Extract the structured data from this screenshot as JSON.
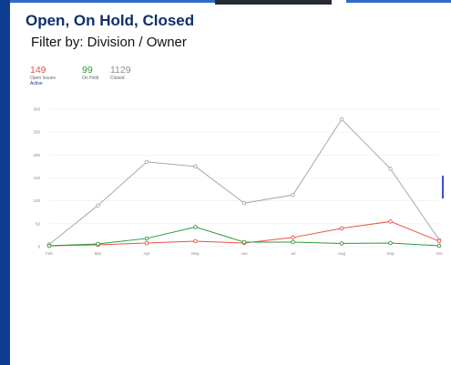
{
  "header": {
    "title": "Open, On Hold, Closed",
    "filter_text": "Filter by: Division / Owner"
  },
  "kpis": {
    "open": {
      "value": "149",
      "label": "Open Issues",
      "link": "Active"
    },
    "on_hold": {
      "value": "99",
      "label": "On Hold"
    },
    "closed": {
      "value": "1129",
      "label": "Closed"
    }
  },
  "colors": {
    "open": "#e45549",
    "on_hold": "#2c9a3b",
    "closed": "#a9a9a9",
    "brand": "#0c3d91"
  },
  "chart_data": {
    "type": "line",
    "x": [
      "Feb",
      "Mar",
      "Apr",
      "May",
      "Jun",
      "Jul",
      "Aug",
      "Sep",
      "Oct"
    ],
    "ylim": [
      0,
      300
    ],
    "yticks": [
      "0",
      "50",
      "100",
      "150",
      "200",
      "250",
      "300"
    ],
    "grid": true,
    "series": [
      {
        "key": "closed",
        "values": [
          5,
          90,
          185,
          175,
          95,
          113,
          278,
          170,
          15
        ]
      },
      {
        "key": "open",
        "values": [
          2,
          4,
          8,
          12,
          8,
          20,
          40,
          55,
          12
        ]
      },
      {
        "key": "on_hold",
        "values": [
          2,
          6,
          18,
          43,
          10,
          10,
          7,
          8,
          2
        ]
      }
    ]
  }
}
